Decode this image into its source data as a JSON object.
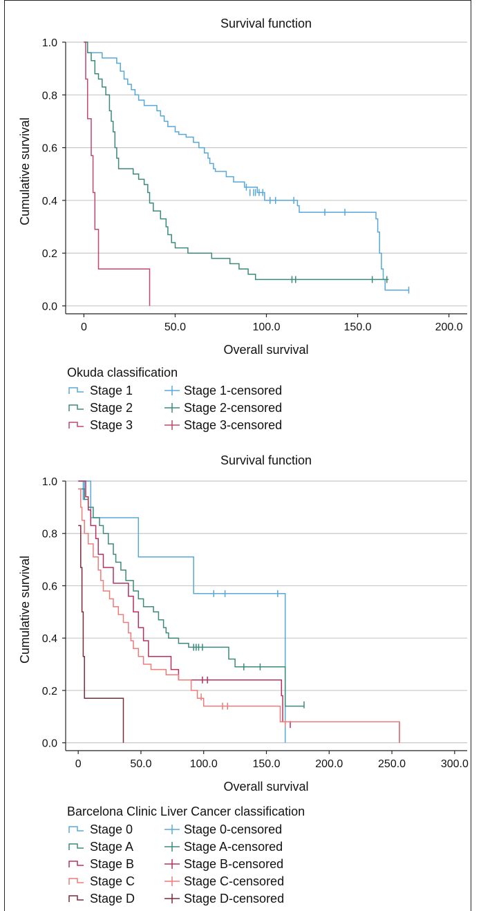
{
  "chart_data": [
    {
      "type": "line",
      "step": true,
      "title": "Survival function",
      "xlabel": "Overall survival",
      "ylabel": "Cumulative survival",
      "xlim": [
        -10,
        210
      ],
      "ylim": [
        -0.03,
        1.0
      ],
      "xticks": [
        0,
        50,
        100,
        150,
        200
      ],
      "xtick_labels": [
        "0",
        "50.0",
        "100.0",
        "150.0",
        "200.0"
      ],
      "yticks": [
        0,
        0.2,
        0.4,
        0.6,
        0.8,
        1.0
      ],
      "ytick_labels": [
        "0.0",
        "0.2",
        "0.4",
        "0.6",
        "0.8",
        "1.0"
      ],
      "grid": "horizontal",
      "legend_title": "Okuda classification",
      "series": [
        {
          "name": "Stage 1",
          "censored_name": "Stage 1-censored",
          "color": "#56a8d8",
          "steps": [
            [
              0,
              1.0
            ],
            [
              2,
              0.96
            ],
            [
              10,
              0.94
            ],
            [
              18,
              0.92
            ],
            [
              20,
              0.89
            ],
            [
              22,
              0.86
            ],
            [
              24,
              0.84
            ],
            [
              26,
              0.82
            ],
            [
              28,
              0.8
            ],
            [
              30,
              0.78
            ],
            [
              33,
              0.76
            ],
            [
              40,
              0.74
            ],
            [
              42,
              0.72
            ],
            [
              44,
              0.7
            ],
            [
              46,
              0.68
            ],
            [
              50,
              0.66
            ],
            [
              52,
              0.65
            ],
            [
              56,
              0.64
            ],
            [
              60,
              0.62
            ],
            [
              63,
              0.6
            ],
            [
              66,
              0.58
            ],
            [
              68,
              0.56
            ],
            [
              69,
              0.54
            ],
            [
              71,
              0.52
            ],
            [
              72,
              0.51
            ],
            [
              78,
              0.49
            ],
            [
              82,
              0.47
            ],
            [
              88,
              0.45
            ],
            [
              95,
              0.43
            ],
            [
              99,
              0.4
            ],
            [
              117,
              0.38
            ],
            [
              118,
              0.355
            ],
            [
              160,
              0.33
            ],
            [
              161,
              0.28
            ],
            [
              162,
              0.2
            ],
            [
              163,
              0.14
            ],
            [
              164,
              0.1
            ],
            [
              165,
              0.06
            ],
            [
              178,
              0.06
            ]
          ],
          "censored": [
            [
              89,
              0.45
            ],
            [
              91,
              0.43
            ],
            [
              93,
              0.43
            ],
            [
              94,
              0.43
            ],
            [
              96,
              0.43
            ],
            [
              98,
              0.43
            ],
            [
              102,
              0.4
            ],
            [
              105,
              0.4
            ],
            [
              115,
              0.4
            ],
            [
              132,
              0.355
            ],
            [
              143,
              0.355
            ],
            [
              178,
              0.06
            ]
          ]
        },
        {
          "name": "Stage 2",
          "censored_name": "Stage 2-censored",
          "color": "#3a8a7a",
          "steps": [
            [
              0,
              1.0
            ],
            [
              2,
              0.96
            ],
            [
              4,
              0.93
            ],
            [
              6,
              0.88
            ],
            [
              8,
              0.86
            ],
            [
              10,
              0.83
            ],
            [
              12,
              0.8
            ],
            [
              14,
              0.74
            ],
            [
              15,
              0.7
            ],
            [
              16,
              0.66
            ],
            [
              17,
              0.6
            ],
            [
              18,
              0.56
            ],
            [
              19,
              0.52
            ],
            [
              27,
              0.5
            ],
            [
              30,
              0.48
            ],
            [
              33,
              0.46
            ],
            [
              35,
              0.43
            ],
            [
              36,
              0.39
            ],
            [
              38,
              0.36
            ],
            [
              42,
              0.33
            ],
            [
              45,
              0.3
            ],
            [
              46,
              0.27
            ],
            [
              48,
              0.24
            ],
            [
              50,
              0.22
            ],
            [
              57,
              0.2
            ],
            [
              70,
              0.18
            ],
            [
              80,
              0.16
            ],
            [
              85,
              0.14
            ],
            [
              90,
              0.12
            ],
            [
              94,
              0.1
            ],
            [
              167,
              0.1
            ]
          ],
          "censored": [
            [
              114,
              0.1
            ],
            [
              116,
              0.1
            ],
            [
              158,
              0.1
            ],
            [
              166,
              0.1
            ]
          ]
        },
        {
          "name": "Stage 3",
          "censored_name": "Stage 3-censored",
          "color": "#c0466a",
          "steps": [
            [
              0,
              1.0
            ],
            [
              1,
              0.86
            ],
            [
              2,
              0.71
            ],
            [
              4,
              0.57
            ],
            [
              5,
              0.43
            ],
            [
              6,
              0.29
            ],
            [
              8,
              0.14
            ],
            [
              36,
              0.14
            ],
            [
              36,
              0.0
            ]
          ],
          "censored": []
        }
      ]
    },
    {
      "type": "line",
      "step": true,
      "title": "Survival function",
      "xlabel": "Overall survival",
      "ylabel": "Cumulative survival",
      "xlim": [
        -10,
        310
      ],
      "ylim": [
        -0.03,
        1.0
      ],
      "xticks": [
        0,
        50,
        100,
        150,
        200,
        250,
        300
      ],
      "xtick_labels": [
        "0",
        "50.0",
        "100.0",
        "150.0",
        "200.0",
        "250.0",
        "300.0"
      ],
      "yticks": [
        0,
        0.2,
        0.4,
        0.6,
        0.8,
        1.0
      ],
      "ytick_labels": [
        "0.0",
        "0.2",
        "0.4",
        "0.6",
        "0.8",
        "1.0"
      ],
      "grid": "horizontal",
      "legend_title": "Barcelona Clinic Liver Cancer classification",
      "series": [
        {
          "name": "Stage 0",
          "censored_name": "Stage 0-censored",
          "color": "#56a8d8",
          "steps": [
            [
              0,
              1.0
            ],
            [
              4,
              0.93
            ],
            [
              5,
              1.0
            ],
            [
              10,
              0.86
            ],
            [
              48,
              0.71
            ],
            [
              92,
              0.57
            ],
            [
              165,
              0.0
            ]
          ],
          "censored": [
            [
              108,
              0.57
            ],
            [
              117,
              0.57
            ],
            [
              159,
              0.57
            ]
          ]
        },
        {
          "name": "Stage A",
          "censored_name": "Stage A-censored",
          "color": "#3a8a7a",
          "steps": [
            [
              0,
              0.97
            ],
            [
              5,
              0.93
            ],
            [
              8,
              0.9
            ],
            [
              12,
              0.86
            ],
            [
              17,
              0.83
            ],
            [
              20,
              0.8
            ],
            [
              24,
              0.76
            ],
            [
              28,
              0.72
            ],
            [
              30,
              0.69
            ],
            [
              34,
              0.66
            ],
            [
              38,
              0.62
            ],
            [
              44,
              0.58
            ],
            [
              48,
              0.55
            ],
            [
              52,
              0.52
            ],
            [
              60,
              0.5
            ],
            [
              64,
              0.47
            ],
            [
              68,
              0.44
            ],
            [
              70,
              0.42
            ],
            [
              72,
              0.4
            ],
            [
              80,
              0.38
            ],
            [
              88,
              0.365
            ],
            [
              98,
              0.365
            ],
            [
              120,
              0.32
            ],
            [
              125,
              0.29
            ],
            [
              150,
              0.29
            ],
            [
              165,
              0.14
            ],
            [
              180,
              0.14
            ]
          ],
          "censored": [
            [
              92,
              0.365
            ],
            [
              94,
              0.365
            ],
            [
              96,
              0.365
            ],
            [
              99,
              0.365
            ],
            [
              132,
              0.29
            ],
            [
              145,
              0.29
            ],
            [
              180,
              0.145
            ]
          ]
        },
        {
          "name": "Stage B",
          "censored_name": "Stage B-censored",
          "color": "#b8305a",
          "steps": [
            [
              0,
              1.0
            ],
            [
              6,
              0.94
            ],
            [
              8,
              0.89
            ],
            [
              10,
              0.83
            ],
            [
              14,
              0.78
            ],
            [
              16,
              0.72
            ],
            [
              20,
              0.67
            ],
            [
              28,
              0.61
            ],
            [
              40,
              0.56
            ],
            [
              44,
              0.5
            ],
            [
              48,
              0.44
            ],
            [
              52,
              0.39
            ],
            [
              56,
              0.33
            ],
            [
              74,
              0.28
            ],
            [
              80,
              0.24
            ],
            [
              162,
              0.18
            ],
            [
              163,
              0.08
            ],
            [
              256,
              0.08
            ],
            [
              256,
              0.0
            ]
          ],
          "censored": [
            [
              99,
              0.24
            ],
            [
              103,
              0.24
            ],
            [
              169,
              0.07
            ]
          ]
        },
        {
          "name": "Stage C",
          "censored_name": "Stage C-censored",
          "color": "#f07a78",
          "steps": [
            [
              0,
              0.97
            ],
            [
              2,
              0.9
            ],
            [
              3,
              0.85
            ],
            [
              5,
              0.8
            ],
            [
              8,
              0.76
            ],
            [
              12,
              0.71
            ],
            [
              16,
              0.66
            ],
            [
              18,
              0.62
            ],
            [
              20,
              0.58
            ],
            [
              25,
              0.55
            ],
            [
              28,
              0.52
            ],
            [
              32,
              0.49
            ],
            [
              36,
              0.46
            ],
            [
              40,
              0.42
            ],
            [
              42,
              0.39
            ],
            [
              44,
              0.36
            ],
            [
              48,
              0.33
            ],
            [
              52,
              0.3
            ],
            [
              58,
              0.28
            ],
            [
              70,
              0.26
            ],
            [
              80,
              0.24
            ],
            [
              90,
              0.2
            ],
            [
              95,
              0.17
            ],
            [
              100,
              0.14
            ],
            [
              160,
              0.14
            ],
            [
              161,
              0.08
            ],
            [
              256,
              0.08
            ],
            [
              256,
              0.0
            ]
          ],
          "censored": [
            [
              98,
              0.175
            ],
            [
              115,
              0.14
            ],
            [
              119,
              0.14
            ],
            [
              165,
              0.075
            ]
          ]
        },
        {
          "name": "Stage D",
          "censored_name": "Stage D-censored",
          "color": "#7a2a3a",
          "steps": [
            [
              0,
              0.83
            ],
            [
              2,
              0.67
            ],
            [
              3,
              0.5
            ],
            [
              4,
              0.33
            ],
            [
              5,
              0.17
            ],
            [
              36,
              0.17
            ],
            [
              36,
              0.0
            ]
          ],
          "censored": []
        }
      ]
    }
  ]
}
